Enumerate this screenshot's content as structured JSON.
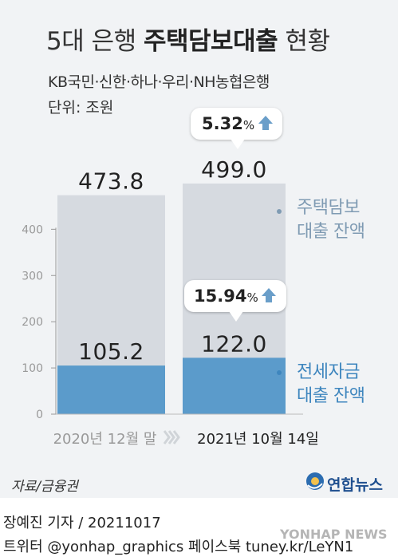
{
  "header": {
    "title_prefix": "5대 은행 ",
    "title_bold": "주택담보대출",
    "title_suffix": " 현황",
    "subtitle": "KB국민·신한·하나·우리·NH농협은행",
    "unit": "단위: 조원"
  },
  "colors": {
    "background": "#f1f3f5",
    "mortgage_bar": "#d6dae0",
    "jeonse_bar": "#5b9bcb",
    "mortgage_label": "#7f9bb3",
    "jeonse_label": "#3e86be",
    "arrow": "#6a9ec9"
  },
  "chart_data": {
    "type": "bar",
    "categories": [
      "2020년 12월 말",
      "2021년 10월 14일"
    ],
    "series": [
      {
        "name": "주택담보 대출 잔액",
        "values": [
          473.8,
          499.0
        ],
        "labels": [
          "473.8",
          "499.0"
        ]
      },
      {
        "name": "전세자금 대출 잔액",
        "values": [
          105.2,
          122.0
        ],
        "labels": [
          "105.2",
          "122.0"
        ]
      }
    ],
    "yticks": [
      "0",
      "100",
      "200",
      "300",
      "400"
    ],
    "ytick_values": [
      0,
      100,
      200,
      300,
      400
    ],
    "ylim": [
      0,
      499
    ],
    "growth": [
      {
        "series": "주택담보 대출 잔액",
        "value": "5.32",
        "unit": "%",
        "icon": "arrow-up-icon"
      },
      {
        "series": "전세자금 대출 잔액",
        "value": "15.94",
        "unit": "%",
        "icon": "arrow-up-icon"
      }
    ],
    "series_labels": [
      {
        "line1": "주택담보",
        "line2": "대출 잔액"
      },
      {
        "line1": "전세자금",
        "line2": "대출 잔액"
      }
    ],
    "category_separator_icon": "chevron-right-icon"
  },
  "footer": {
    "source": "자료/금융권",
    "logo": "연합뉴스",
    "reporter": "장예진 기자 / 20211017",
    "twitter": "트위터 @yonhap_graphics  페이스북 tuney.kr/LeYN1",
    "watermark": "YONHAP NEWS"
  }
}
